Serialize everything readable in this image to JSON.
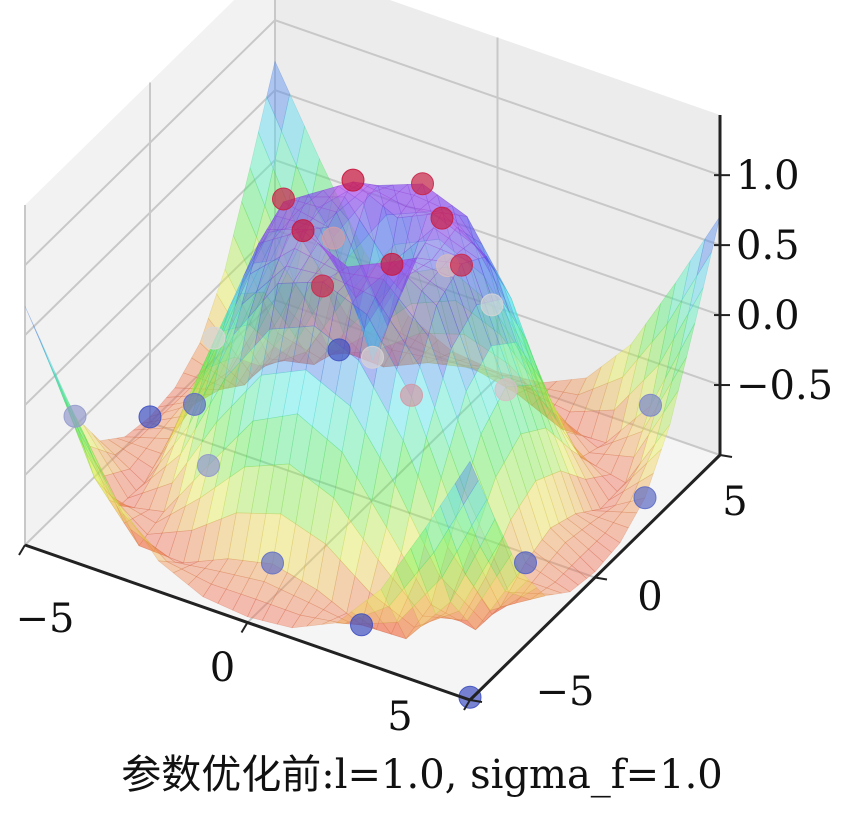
{
  "chart_data": {
    "type": "surface",
    "caption": "参数优化前:l=1.0, sigma_f=1.0",
    "xlim": [
      -5,
      5
    ],
    "ylim": [
      -5,
      5
    ],
    "zlim": [
      -1.0,
      1.43
    ],
    "x_ticks": [
      -5,
      0,
      5
    ],
    "x_tick_labels": [
      "−5",
      "0",
      "5"
    ],
    "y_ticks": [
      -5,
      0,
      5
    ],
    "y_tick_labels": [
      "−5",
      "0",
      "5"
    ],
    "z_ticks": [
      -0.5,
      0.0,
      0.5,
      1.0
    ],
    "z_tick_labels": [
      "−0.5",
      "0.0",
      "0.5",
      "1.0"
    ],
    "grid": true,
    "surface": {
      "x": [
        -5,
        -4,
        -3,
        -2,
        -1,
        0,
        1,
        2,
        3,
        4,
        5
      ],
      "y": [
        -5,
        -4,
        -3,
        -2,
        -1,
        0,
        1,
        2,
        3,
        4,
        5
      ],
      "z": [
        [
          0.706,
          0.119,
          -0.431,
          -0.781,
          -0.927,
          -0.959,
          -0.927,
          -0.781,
          -0.431,
          0.119,
          0.706
        ],
        [
          0.119,
          -0.584,
          -0.959,
          -0.971,
          -0.83,
          -0.757,
          -0.83,
          -0.971,
          -0.959,
          -0.584,
          0.119
        ],
        [
          -0.431,
          -0.959,
          -0.89,
          -0.448,
          -0.021,
          0.141,
          -0.021,
          -0.448,
          -0.89,
          -0.959,
          -0.431
        ],
        [
          -0.781,
          -0.971,
          -0.448,
          0.308,
          0.787,
          0.909,
          0.787,
          0.308,
          -0.448,
          -0.971,
          -0.781
        ],
        [
          -0.927,
          -0.83,
          -0.021,
          0.787,
          0.988,
          0.841,
          0.988,
          0.787,
          -0.021,
          -0.83,
          -0.927
        ],
        [
          -0.959,
          -0.757,
          0.141,
          0.909,
          0.841,
          0.0,
          0.841,
          0.909,
          0.141,
          -0.757,
          -0.959
        ],
        [
          -0.927,
          -0.83,
          -0.021,
          0.787,
          0.988,
          0.841,
          0.988,
          0.787,
          -0.021,
          -0.83,
          -0.927
        ],
        [
          -0.781,
          -0.971,
          -0.448,
          0.308,
          0.787,
          0.909,
          0.787,
          0.308,
          -0.448,
          -0.971,
          -0.781
        ],
        [
          -0.431,
          -0.959,
          -0.89,
          -0.448,
          -0.021,
          0.141,
          -0.021,
          -0.448,
          -0.89,
          -0.959,
          -0.431
        ],
        [
          0.119,
          -0.584,
          -0.959,
          -0.971,
          -0.83,
          -0.757,
          -0.83,
          -0.971,
          -0.959,
          -0.584,
          0.119
        ],
        [
          0.706,
          0.119,
          -0.431,
          -0.781,
          -0.927,
          -0.959,
          -0.927,
          -0.781,
          -0.431,
          0.119,
          0.706
        ]
      ]
    },
    "scatter": [
      {
        "x": -1,
        "y": -1,
        "z": 0.99
      },
      {
        "x": 1,
        "y": 1,
        "z": 0.95
      },
      {
        "x": -1,
        "y": 1,
        "z": 1.0
      },
      {
        "x": 1,
        "y": -1,
        "z": 0.97
      },
      {
        "x": 0,
        "y": 2,
        "z": 0.91
      },
      {
        "x": 2,
        "y": 0,
        "z": 0.9
      },
      {
        "x": -2,
        "y": 0,
        "z": 0.93
      },
      {
        "x": 0,
        "y": -2,
        "z": 0.88
      },
      {
        "x": 0,
        "y": 0,
        "z": 0.02
      },
      {
        "x": -2,
        "y": 2,
        "z": 0.3
      },
      {
        "x": 2,
        "y": -2,
        "z": 0.32
      },
      {
        "x": 0,
        "y": 3,
        "z": 0.15
      },
      {
        "x": 3,
        "y": 0,
        "z": 0.12
      },
      {
        "x": -3,
        "y": -1,
        "z": 0.0
      },
      {
        "x": -4,
        "y": 0,
        "z": -0.76
      },
      {
        "x": 0,
        "y": -4,
        "z": -0.75
      },
      {
        "x": 4,
        "y": 4,
        "z": -0.58
      },
      {
        "x": -5,
        "y": 0,
        "z": -0.96
      },
      {
        "x": 5,
        "y": 2,
        "z": -0.78
      },
      {
        "x": -3,
        "y": 4,
        "z": -0.96
      },
      {
        "x": 2,
        "y": -4,
        "z": -0.97
      },
      {
        "x": -5,
        "y": -3,
        "z": -0.43
      },
      {
        "x": 4,
        "y": -1,
        "z": -0.83
      },
      {
        "x": 1,
        "y": 3,
        "z": -0.02
      },
      {
        "x": -2,
        "y": -3,
        "z": -0.45
      },
      {
        "x": 5,
        "y": -5,
        "z": -0.98
      }
    ]
  }
}
